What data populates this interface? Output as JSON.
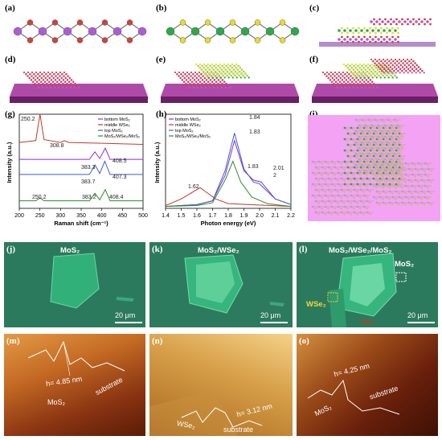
{
  "labels": [
    "(a)",
    "(b)",
    "(c)",
    "(d)",
    "(e)",
    "(f)",
    "(g)",
    "(h)",
    "(i)",
    "(j)",
    "(k)",
    "(l)",
    "(m)",
    "(n)",
    "(o)"
  ],
  "colors": {
    "mo": "#b05bd6",
    "s": "#d0423c",
    "w": "#2fa84a",
    "se": "#e6dc2a",
    "substrate_top": "#a0339a",
    "optical_bg": "#2c7a5d",
    "afm_dark": "#7a2a10",
    "afm_light": "#f2c069",
    "panel_i_bg": "#f4a3f4"
  },
  "raman": {
    "xlabel": "Raman shift (cm⁻¹)",
    "ylabel": "Intensity (a.u.)",
    "legend": [
      "bottom MoS₂",
      "middle WSe₂",
      "top MoS₂",
      "MoS₂/WSe₂/MoS₂"
    ],
    "annotations": [
      "250.2",
      "308.8",
      "383.3",
      "408.5",
      "383.7",
      "407.3",
      "250.2",
      "383.2",
      "408.4"
    ]
  },
  "pl": {
    "xlabel": "Photon energy (eV)",
    "ylabel": "Intensity (a.u.)",
    "legend": [
      "bottom MoS₂",
      "middle WSe₂",
      "top MoS₂",
      "MoS₂/WSe₂/MoS₂"
    ],
    "annotations": [
      "1.84",
      "1.83",
      "1.62",
      "1.83",
      "2.01",
      "2"
    ]
  },
  "chart_data": [
    {
      "type": "line",
      "xlabel": "Raman shift (cm⁻¹)",
      "ylabel": "Intensity (a.u.)",
      "xlim": [
        200,
        500
      ],
      "xticks": [
        200,
        250,
        300,
        350,
        400,
        450,
        500
      ],
      "series": [
        {
          "name": "bottom MoS₂",
          "color": "#8a2be2",
          "x": [
            200,
            370,
            383.3,
            395,
            408.5,
            420,
            500
          ],
          "y": [
            0.52,
            0.52,
            0.6,
            0.53,
            0.64,
            0.52,
            0.52
          ]
        },
        {
          "name": "middle WSe₂",
          "color": "#c0392b",
          "x": [
            200,
            240,
            250.2,
            260,
            300,
            308.8,
            320,
            500
          ],
          "y": [
            0.7,
            0.72,
            1.0,
            0.73,
            0.7,
            0.72,
            0.7,
            0.68
          ]
        },
        {
          "name": "top MoS₂",
          "color": "#3a5fcd",
          "x": [
            200,
            370,
            383.7,
            395,
            407.3,
            420,
            500
          ],
          "y": [
            0.36,
            0.36,
            0.46,
            0.37,
            0.5,
            0.36,
            0.36
          ]
        },
        {
          "name": "MoS₂/WSe₂/MoS₂",
          "color": "#2e8b2e",
          "x": [
            200,
            240,
            250.2,
            260,
            370,
            383.2,
            395,
            408.4,
            420,
            500
          ],
          "y": [
            0.08,
            0.08,
            0.11,
            0.08,
            0.08,
            0.16,
            0.09,
            0.2,
            0.08,
            0.08
          ]
        }
      ]
    },
    {
      "type": "line",
      "xlabel": "Photon energy (eV)",
      "ylabel": "Intensity (a.u.)",
      "xlim": [
        1.4,
        2.2
      ],
      "xticks": [
        1.4,
        1.5,
        1.6,
        1.7,
        1.8,
        1.9,
        2.0,
        2.1,
        2.2
      ],
      "series": [
        {
          "name": "bottom MoS₂",
          "color": "#8a2be2",
          "x": [
            1.4,
            1.6,
            1.7,
            1.78,
            1.84,
            1.9,
            1.96,
            2.01,
            2.1,
            2.2
          ],
          "y": [
            0.02,
            0.04,
            0.08,
            0.35,
            0.72,
            0.4,
            0.3,
            0.28,
            0.1,
            0.04
          ]
        },
        {
          "name": "middle WSe₂",
          "color": "#c0392b",
          "x": [
            1.4,
            1.5,
            1.62,
            1.72,
            1.8,
            2.2
          ],
          "y": [
            0.03,
            0.1,
            0.22,
            0.1,
            0.05,
            0.02
          ]
        },
        {
          "name": "top MoS₂",
          "color": "#3a5fcd",
          "x": [
            1.4,
            1.6,
            1.7,
            1.78,
            1.84,
            1.9,
            1.96,
            2.0,
            2.1,
            2.2
          ],
          "y": [
            0.02,
            0.04,
            0.08,
            0.4,
            0.8,
            0.42,
            0.28,
            0.26,
            0.1,
            0.04
          ]
        },
        {
          "name": "MoS₂/WSe₂/MoS₂",
          "color": "#2e8b2e",
          "x": [
            1.4,
            1.6,
            1.7,
            1.78,
            1.83,
            1.88,
            1.95,
            2.05,
            2.2
          ],
          "y": [
            0.02,
            0.03,
            0.06,
            0.3,
            0.5,
            0.28,
            0.12,
            0.05,
            0.02
          ]
        }
      ]
    }
  ],
  "optical": {
    "j_title": "MoS₂",
    "k_title": "MoS₂/WSe₂",
    "l_title": "MoS₂/WSe₂/MoS₂",
    "scale": "20 μm",
    "l_mos2": "MoS₂",
    "l_wse2": "WSe₂",
    "l_mos2_bottom": "MoS₂"
  },
  "afm": {
    "m_h": "h= 4.85 nm",
    "m_mos2": "MoS₂",
    "m_sub": "substrate",
    "n_h": "h= 3.12 nm",
    "n_wse2": "WSe₂",
    "n_sub": "substrate",
    "o_h": "h= 4.25 nm",
    "o_mos2": "MoS₂",
    "o_sub": "substrate"
  }
}
